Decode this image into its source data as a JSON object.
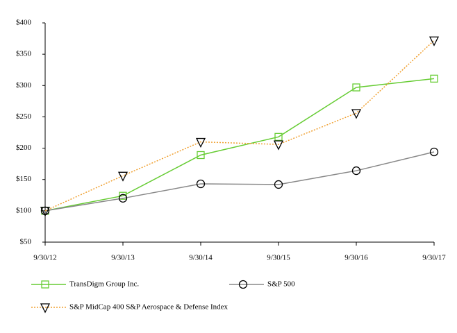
{
  "chart_data": {
    "type": "line",
    "categories": [
      "9/30/12",
      "9/30/13",
      "9/30/14",
      "9/30/15",
      "9/30/16",
      "9/30/17"
    ],
    "series": [
      {
        "name": "TransDigm Group Inc.",
        "color": "#66cc33",
        "marker": "square",
        "dash": "solid",
        "values": [
          100,
          124,
          189,
          218,
          297,
          311
        ]
      },
      {
        "name": "S&P 500",
        "color": "#888888",
        "marker": "circle",
        "dash": "solid",
        "values": [
          100,
          120,
          143,
          142,
          164,
          194
        ]
      },
      {
        "name": "S&P MidCap 400 S&P Aerospace & Defense Index",
        "color": "#f0a030",
        "marker": "triangle-down",
        "dash": "dotted",
        "values": [
          100,
          156,
          210,
          206,
          256,
          372
        ]
      }
    ],
    "ylim": [
      50,
      400
    ],
    "yticks": [
      {
        "value": 50,
        "label": "$50"
      },
      {
        "value": 100,
        "label": "$100"
      },
      {
        "value": 150,
        "label": "$150"
      },
      {
        "value": 200,
        "label": "$200"
      },
      {
        "value": 250,
        "label": "$250"
      },
      {
        "value": 300,
        "label": "$300"
      },
      {
        "value": 350,
        "label": "$350"
      },
      {
        "value": 400,
        "label": "$400"
      }
    ],
    "grid": false,
    "legend": "bottom"
  }
}
